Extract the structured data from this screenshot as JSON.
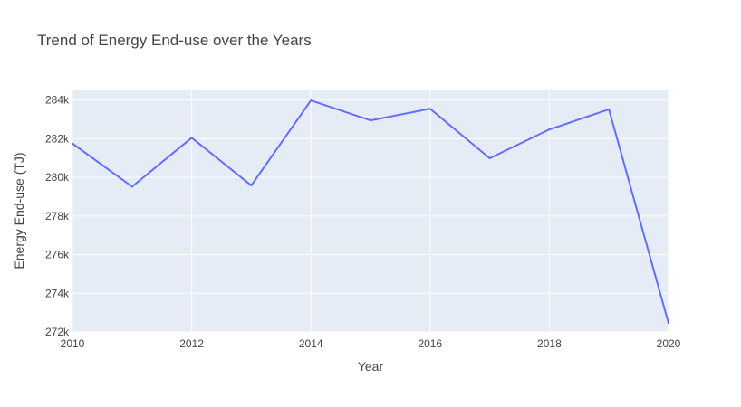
{
  "chart_data": {
    "type": "line",
    "title": "Trend of Energy End-use over the Years",
    "xlabel": "Year",
    "ylabel": "Energy End-use (TJ)",
    "xlim": [
      2010,
      2020
    ],
    "ylim": [
      272000,
      284500
    ],
    "x_ticks": [
      2010,
      2012,
      2014,
      2016,
      2018,
      2020
    ],
    "x_tick_labels": [
      "2010",
      "2012",
      "2014",
      "2016",
      "2018",
      "2020"
    ],
    "y_ticks": [
      272000,
      274000,
      276000,
      278000,
      280000,
      282000,
      284000
    ],
    "y_tick_labels": [
      "272k",
      "274k",
      "276k",
      "278k",
      "280k",
      "282k",
      "284k"
    ],
    "grid": true,
    "legend": false,
    "colors": {
      "plot_background": "#E5ECF6",
      "grid": "#ffffff",
      "line": "#636EFA",
      "text": "#444444"
    },
    "x": [
      2010,
      2011,
      2012,
      2013,
      2014,
      2015,
      2016,
      2017,
      2018,
      2019,
      2020
    ],
    "series": [
      {
        "values": [
          281750,
          279520,
          282050,
          279580,
          283980,
          282950,
          283550,
          280990,
          282480,
          283520,
          272450
        ]
      }
    ]
  }
}
